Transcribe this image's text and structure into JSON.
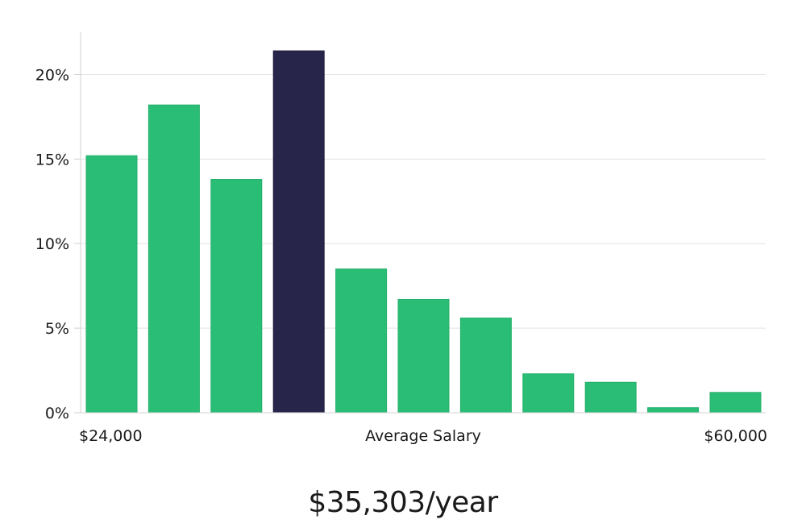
{
  "chart_data": {
    "type": "bar",
    "title": "",
    "xlabel": "Average Salary",
    "ylabel": "",
    "x_range_labels": {
      "start": "$24,000",
      "end": "$60,000"
    },
    "yticks": [
      "0%",
      "5%",
      "10%",
      "15%",
      "20%"
    ],
    "ylim": [
      0,
      22.5
    ],
    "values": [
      15.2,
      18.2,
      13.8,
      21.4,
      8.5,
      6.7,
      5.6,
      2.3,
      1.8,
      0.3,
      1.2
    ],
    "highlight_index": 3,
    "grid": true,
    "colors": {
      "bar": "#2abd76",
      "highlight": "#28254a",
      "grid": "#e3e3e3",
      "axis": "#d0d0d0",
      "text": "#1a1a1a"
    }
  },
  "summary": {
    "salary_per_year": "$35,303/year"
  }
}
